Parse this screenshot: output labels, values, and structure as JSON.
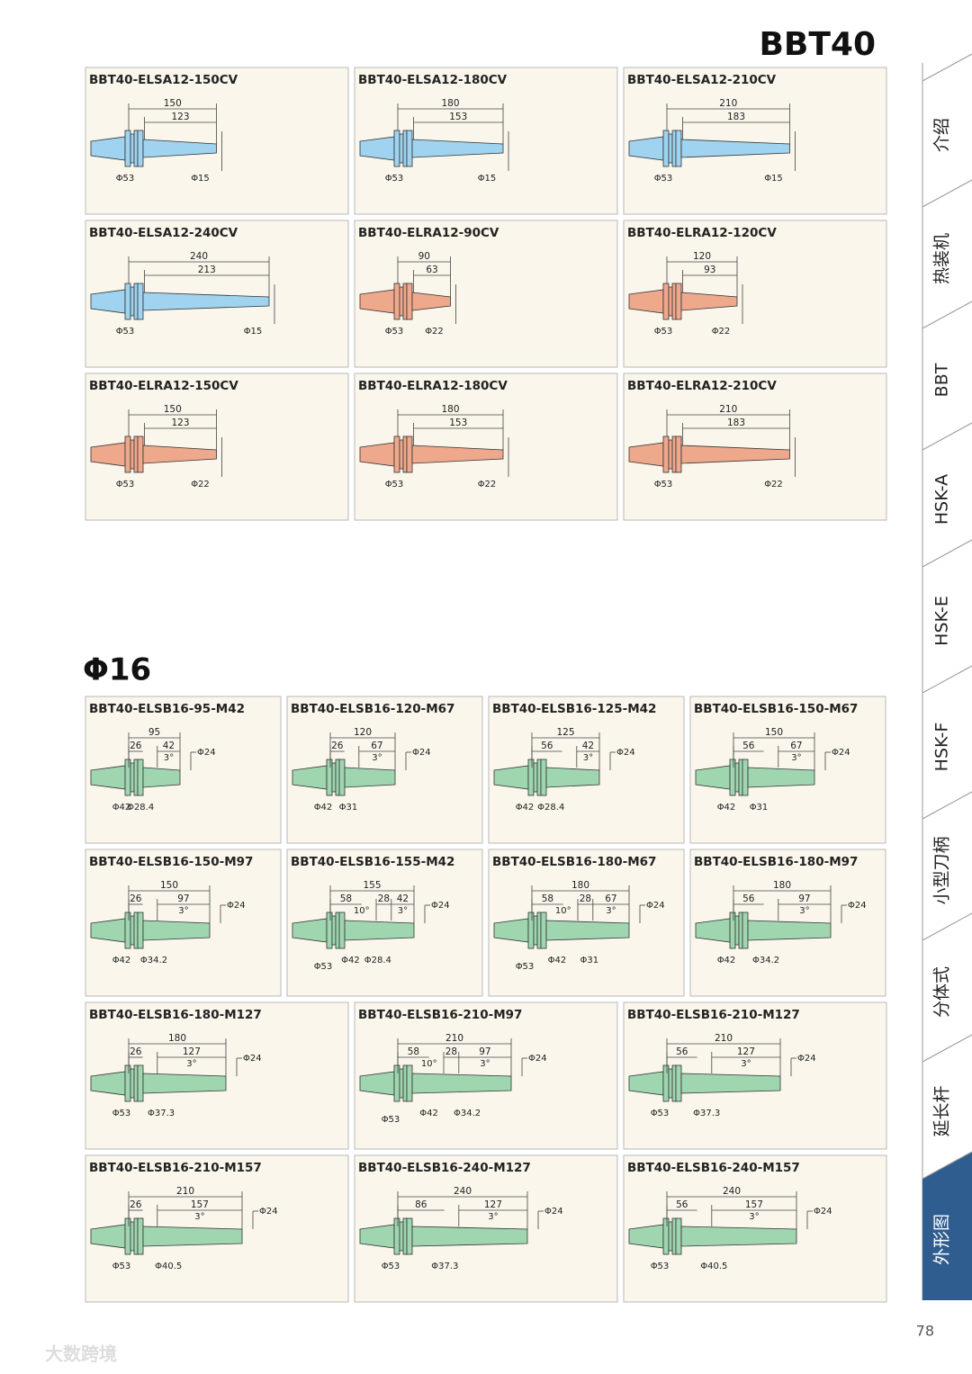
{
  "header": {
    "title": "BBT40"
  },
  "section_title": "Φ16",
  "top_cards": [
    {
      "title": "BBT40-ELSA12-150CV",
      "color": "#9fd3ef",
      "lengths": [
        150,
        123
      ],
      "diameters": [
        "Φ53",
        "Φ15"
      ]
    },
    {
      "title": "BBT40-ELSA12-180CV",
      "color": "#9fd3ef",
      "lengths": [
        180,
        153
      ],
      "diameters": [
        "Φ53",
        "Φ15"
      ]
    },
    {
      "title": "BBT40-ELSA12-210CV",
      "color": "#9fd3ef",
      "lengths": [
        210,
        183
      ],
      "diameters": [
        "Φ53",
        "Φ15"
      ]
    },
    {
      "title": "BBT40-ELSA12-240CV",
      "color": "#9fd3ef",
      "lengths": [
        240,
        213
      ],
      "diameters": [
        "Φ53",
        "Φ15"
      ]
    },
    {
      "title": "BBT40-ELRA12-90CV",
      "color": "#eea88c",
      "lengths": [
        90,
        63
      ],
      "diameters": [
        "Φ53",
        "Φ22"
      ]
    },
    {
      "title": "BBT40-ELRA12-120CV",
      "color": "#eea88c",
      "lengths": [
        120,
        93
      ],
      "diameters": [
        "Φ53",
        "Φ22"
      ]
    },
    {
      "title": "BBT40-ELRA12-150CV",
      "color": "#eea88c",
      "lengths": [
        150,
        123
      ],
      "diameters": [
        "Φ53",
        "Φ22"
      ]
    },
    {
      "title": "BBT40-ELRA12-180CV",
      "color": "#eea88c",
      "lengths": [
        180,
        153
      ],
      "diameters": [
        "Φ53",
        "Φ22"
      ]
    },
    {
      "title": "BBT40-ELRA12-210CV",
      "color": "#eea88c",
      "lengths": [
        210,
        183
      ],
      "diameters": [
        "Φ53",
        "Φ22"
      ]
    }
  ],
  "bottom_cards": [
    {
      "title": "BBT40-ELSB16-95-M42",
      "color": "#9fd6b0",
      "lengths": [
        95,
        26,
        42
      ],
      "angles": [
        "3°"
      ],
      "tip": "Φ24",
      "diameters": [
        "Φ42",
        "Φ28.4"
      ]
    },
    {
      "title": "BBT40-ELSB16-120-M67",
      "color": "#9fd6b0",
      "lengths": [
        120,
        26,
        67
      ],
      "angles": [
        "3°"
      ],
      "tip": "Φ24",
      "diameters": [
        "Φ42",
        "Φ31"
      ]
    },
    {
      "title": "BBT40-ELSB16-125-M42",
      "color": "#9fd6b0",
      "lengths": [
        125,
        56,
        42
      ],
      "angles": [
        "3°"
      ],
      "tip": "Φ24",
      "diameters": [
        "Φ42",
        "Φ28.4"
      ]
    },
    {
      "title": "BBT40-ELSB16-150-M67",
      "color": "#9fd6b0",
      "lengths": [
        150,
        56,
        67
      ],
      "angles": [
        "3°"
      ],
      "tip": "Φ24",
      "diameters": [
        "Φ42",
        "Φ31"
      ]
    },
    {
      "title": "BBT40-ELSB16-150-M97",
      "color": "#9fd6b0",
      "lengths": [
        150,
        26,
        97
      ],
      "angles": [
        "3°"
      ],
      "tip": "Φ24",
      "diameters": [
        "Φ42",
        "Φ34.2"
      ]
    },
    {
      "title": "BBT40-ELSB16-155-M42",
      "color": "#9fd6b0",
      "lengths": [
        155,
        58,
        28,
        42
      ],
      "angles": [
        "10°",
        "3°"
      ],
      "tip": "Φ24",
      "diameters": [
        "Φ53",
        "Φ42",
        "Φ28.4"
      ]
    },
    {
      "title": "BBT40-ELSB16-180-M67",
      "color": "#9fd6b0",
      "lengths": [
        180,
        58,
        28,
        67
      ],
      "angles": [
        "10°",
        "3°"
      ],
      "tip": "Φ24",
      "diameters": [
        "Φ53",
        "Φ42",
        "Φ31"
      ]
    },
    {
      "title": "BBT40-ELSB16-180-M97",
      "color": "#9fd6b0",
      "lengths": [
        180,
        56,
        97
      ],
      "angles": [
        "3°"
      ],
      "tip": "Φ24",
      "diameters": [
        "Φ42",
        "Φ34.2"
      ]
    },
    {
      "title": "BBT40-ELSB16-180-M127",
      "color": "#9fd6b0",
      "lengths": [
        180,
        26,
        127
      ],
      "angles": [
        "3°"
      ],
      "tip": "Φ24",
      "diameters": [
        "Φ53",
        "Φ37.3"
      ]
    },
    {
      "title": "BBT40-ELSB16-210-M97",
      "color": "#9fd6b0",
      "lengths": [
        210,
        58,
        28,
        97
      ],
      "angles": [
        "10°",
        "3°"
      ],
      "tip": "Φ24",
      "diameters": [
        "Φ53",
        "Φ42",
        "Φ34.2"
      ]
    },
    {
      "title": "BBT40-ELSB16-210-M127",
      "color": "#9fd6b0",
      "lengths": [
        210,
        56,
        127
      ],
      "angles": [
        "3°"
      ],
      "tip": "Φ24",
      "diameters": [
        "Φ53",
        "Φ37.3"
      ]
    },
    {
      "title": "BBT40-ELSB16-210-M157",
      "color": "#9fd6b0",
      "lengths": [
        210,
        26,
        157
      ],
      "angles": [
        "3°"
      ],
      "tip": "Φ24",
      "diameters": [
        "Φ53",
        "Φ40.5"
      ]
    },
    {
      "title": "BBT40-ELSB16-240-M127",
      "color": "#9fd6b0",
      "lengths": [
        240,
        86,
        127
      ],
      "angles": [
        "3°"
      ],
      "tip": "Φ24",
      "diameters": [
        "Φ53",
        "Φ37.3"
      ]
    },
    {
      "title": "BBT40-ELSB16-240-M157",
      "color": "#9fd6b0",
      "lengths": [
        240,
        56,
        157
      ],
      "angles": [
        "3°"
      ],
      "tip": "Φ24",
      "diameters": [
        "Φ53",
        "Φ40.5"
      ]
    }
  ],
  "sidebar": {
    "tabs": [
      "介绍",
      "热装机",
      "BBT",
      "HSK-A",
      "HSK-E",
      "HSK-F",
      "小型刀柄",
      "分体式",
      "延长杆",
      "外形图"
    ],
    "active": 9
  },
  "page_number": "78",
  "watermark": "大数跨境"
}
